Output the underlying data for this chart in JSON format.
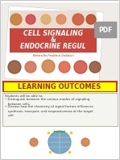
{
  "title_line1": "CELL SIGNALING",
  "title_line2": "&",
  "title_line3": "ENDOCRINE REGUL",
  "title_bg_color": "#c9463d",
  "title_text_color": "#ffffff",
  "section_label": "LEARNING OUTCOMES",
  "section_bg_color": "#ffff00",
  "section_border_color": "#cc3300",
  "section_text_color": "#993300",
  "body_bg_color": "#f5f5f0",
  "body_border_color": "#bbaa88",
  "slide_bg_color": "#ffffff",
  "outer_bg_color": "#d8d8d8",
  "top_area_bg": "#f0ede8",
  "top_area_color2": "#e8e0d8",
  "pdf_badge_color": "#888888",
  "bullet_text_color": "#333333",
  "bullet_label_color": "#cc3300",
  "bottom_bg": "#ffffff",
  "globe_color": "#6699bb",
  "figure_color": "#885533"
}
